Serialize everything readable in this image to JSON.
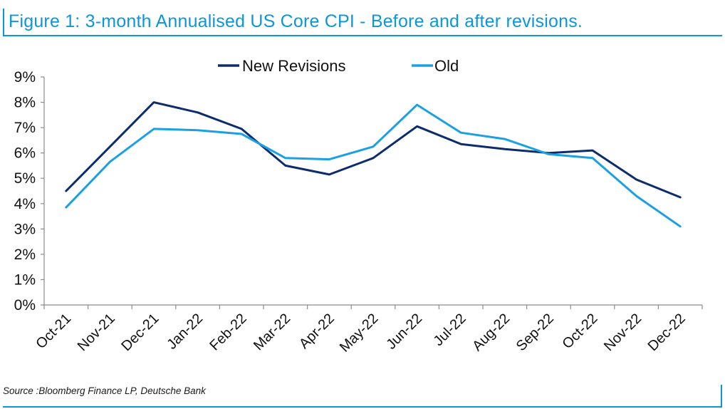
{
  "figure": {
    "title": "Figure 1: 3-month Annualised US Core CPI - Before and after revisions.",
    "source": "Source :Bloomberg Finance LP, Deutsche Bank"
  },
  "colors": {
    "accent": "#0b97d9",
    "new_revisions": "#0d2c6c",
    "old": "#1ba0e2",
    "axis": "#8c8c8c",
    "text": "#111111"
  },
  "chart_data": {
    "type": "line",
    "title": "Figure 1: 3-month Annualised US Core CPI - Before and after revisions.",
    "xlabel": "",
    "ylabel": "",
    "categories": [
      "Oct-21",
      "Nov-21",
      "Dec-21",
      "Jan-22",
      "Feb-22",
      "Mar-22",
      "Apr-22",
      "May-22",
      "Jun-22",
      "Jul-22",
      "Aug-22",
      "Sep-22",
      "Oct-22",
      "Nov-22",
      "Dec-22"
    ],
    "ylim": [
      0,
      9
    ],
    "yticks": [
      0,
      1,
      2,
      3,
      4,
      5,
      6,
      7,
      8,
      9
    ],
    "ytick_labels": [
      "0%",
      "1%",
      "2%",
      "3%",
      "4%",
      "5%",
      "6%",
      "7%",
      "8%",
      "9%"
    ],
    "grid": false,
    "legend_position": "top-center",
    "series": [
      {
        "name": "New Revisions",
        "color": "#0d2c6c",
        "values": [
          4.5,
          6.25,
          8.0,
          7.6,
          6.95,
          5.5,
          5.15,
          5.8,
          7.05,
          6.35,
          6.15,
          6.0,
          6.1,
          4.95,
          4.25
        ]
      },
      {
        "name": "Old",
        "color": "#1ba0e2",
        "values": [
          3.85,
          5.65,
          6.95,
          6.9,
          6.75,
          5.8,
          5.75,
          6.25,
          7.9,
          6.8,
          6.55,
          5.95,
          5.8,
          4.3,
          3.1
        ]
      }
    ]
  }
}
